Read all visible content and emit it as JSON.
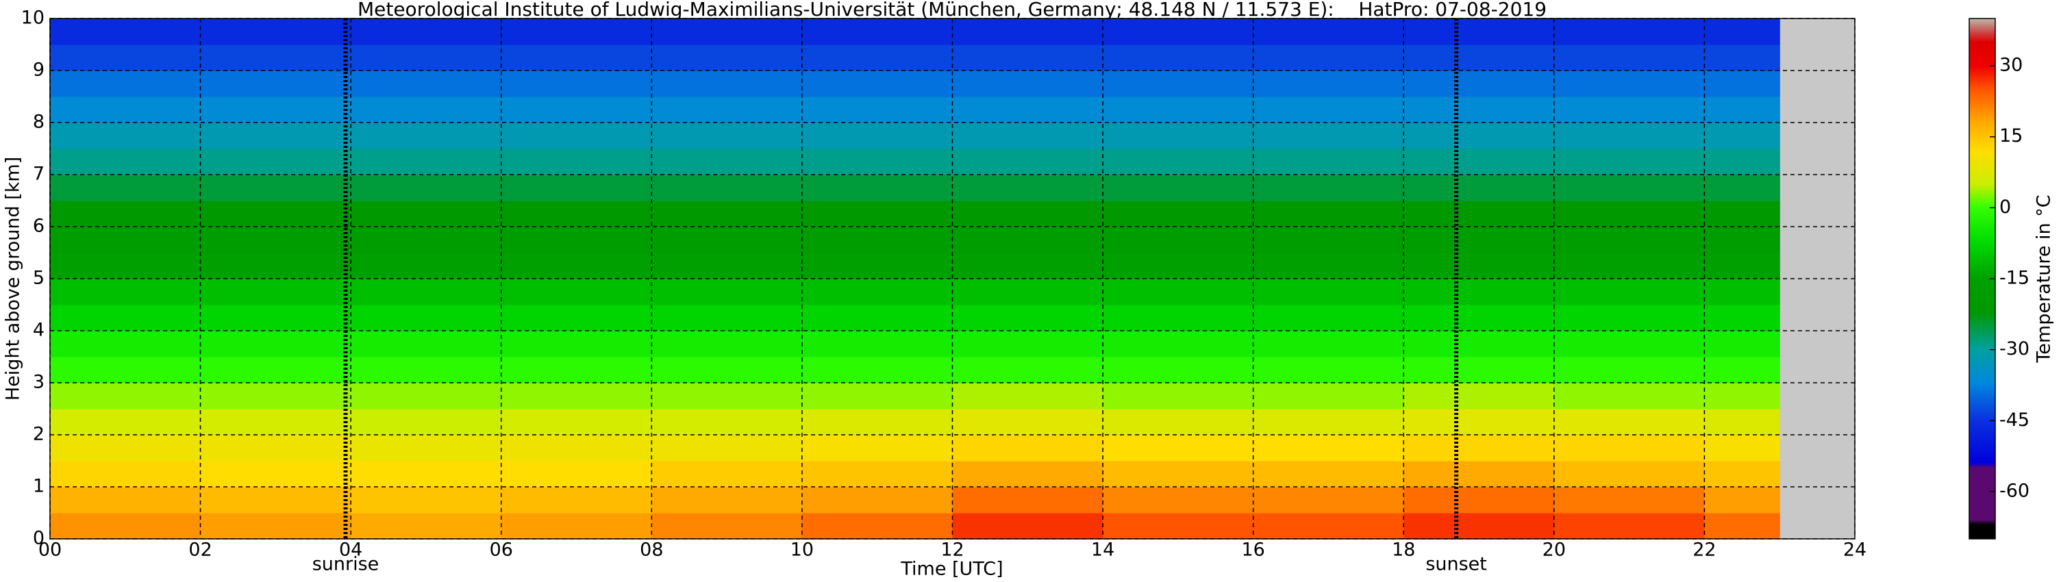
{
  "chart_data": {
    "type": "heatmap",
    "title": "Meteorological Institute of Ludwig-Maximilians-Universität (München, Germany; 48.148 N / 11.573 E):    HatPro: 07-08-2019",
    "xlabel": "Time [UTC]",
    "ylabel": "Height above ground [km]",
    "colorbar_label": "Temperature in °C",
    "x_edges": [
      0,
      2,
      4,
      6,
      8,
      10,
      12,
      14,
      16,
      18,
      20,
      22,
      23
    ],
    "y_edges": [
      0,
      0.5,
      1,
      1.5,
      2,
      2.5,
      3,
      3.5,
      4,
      4.5,
      5,
      5.5,
      6,
      6.5,
      7,
      7.5,
      8,
      8.5,
      9,
      9.5,
      10
    ],
    "z": [
      [
        20,
        19,
        18,
        19,
        21,
        23,
        27,
        25,
        25,
        27,
        26,
        23
      ],
      [
        17,
        16,
        15,
        16,
        18,
        19,
        23,
        21,
        21,
        23,
        22,
        19
      ],
      [
        13,
        12,
        12,
        12,
        14,
        15,
        18,
        16,
        16,
        18,
        16,
        15
      ],
      [
        10,
        10,
        9,
        10,
        10,
        11,
        13,
        12,
        12,
        13,
        13,
        11
      ],
      [
        6,
        6,
        5,
        6,
        6,
        7,
        8,
        7,
        7,
        8,
        8,
        7
      ],
      [
        3,
        3,
        3,
        3,
        3,
        3,
        4,
        3,
        3,
        4,
        3,
        3
      ],
      [
        -1,
        -1,
        -1,
        -1,
        -1,
        -1,
        -1,
        -1,
        -1,
        -1,
        -1,
        -1
      ],
      [
        -4,
        -4,
        -4,
        -4,
        -4,
        -4,
        -4,
        -4,
        -4,
        -4,
        -4,
        -4
      ],
      [
        -8,
        -8,
        -8,
        -8,
        -8,
        -8,
        -8,
        -8,
        -8,
        -8,
        -8,
        -8
      ],
      [
        -11,
        -11,
        -11,
        -11,
        -11,
        -11,
        -11,
        -11,
        -11,
        -11,
        -11,
        -11
      ],
      [
        -15,
        -15,
        -15,
        -15,
        -15,
        -15,
        -15,
        -15,
        -15,
        -15,
        -15,
        -15
      ],
      [
        -18,
        -18,
        -18,
        -18,
        -18,
        -18,
        -18,
        -18,
        -18,
        -18,
        -18,
        -18
      ],
      [
        -22,
        -22,
        -22,
        -22,
        -22,
        -22,
        -22,
        -22,
        -22,
        -22,
        -22,
        -22
      ],
      [
        -25,
        -25,
        -25,
        -25,
        -25,
        -25,
        -25,
        -25,
        -25,
        -25,
        -25,
        -25
      ],
      [
        -29,
        -29,
        -29,
        -29,
        -29,
        -29,
        -29,
        -29,
        -29,
        -29,
        -29,
        -29
      ],
      [
        -32,
        -32,
        -32,
        -32,
        -32,
        -32,
        -32,
        -32,
        -32,
        -32,
        -32,
        -32
      ],
      [
        -36,
        -36,
        -36,
        -36,
        -36,
        -36,
        -36,
        -36,
        -36,
        -36,
        -36,
        -36
      ],
      [
        -39,
        -39,
        -39,
        -39,
        -39,
        -39,
        -39,
        -39,
        -39,
        -39,
        -39,
        -39
      ],
      [
        -43,
        -43,
        -43,
        -43,
        -43,
        -43,
        -43,
        -43,
        -43,
        -43,
        -43,
        -43
      ],
      [
        -46,
        -46,
        -46,
        -46,
        -46,
        -46,
        -46,
        -46,
        -46,
        -46,
        -46,
        -46
      ]
    ],
    "colormap": [
      [
        -70,
        "#000000"
      ],
      [
        -67,
        "#000000"
      ],
      [
        -66,
        "#5a0a6e"
      ],
      [
        -55,
        "#5a0a6e"
      ],
      [
        -54,
        "#0000dd"
      ],
      [
        -45,
        "#0a30e0"
      ],
      [
        -37,
        "#0088dd"
      ],
      [
        -30,
        "#00a0a0"
      ],
      [
        -22,
        "#009900"
      ],
      [
        -15,
        "#00a000"
      ],
      [
        -7,
        "#00dd00"
      ],
      [
        0,
        "#33ff00"
      ],
      [
        5,
        "#ccee00"
      ],
      [
        12,
        "#ffdd00"
      ],
      [
        18,
        "#ffaa00"
      ],
      [
        25,
        "#ff5500"
      ],
      [
        30,
        "#ee0000"
      ],
      [
        35,
        "#dd0000"
      ],
      [
        37,
        "#cc4444"
      ],
      [
        40,
        "#bbbbaa"
      ]
    ],
    "clim": [
      -70,
      40
    ],
    "cticks": [
      -60,
      -45,
      -30,
      -15,
      0,
      15,
      30
    ],
    "xlim": [
      0,
      24
    ],
    "xticks": [
      {
        "value": 0,
        "label": "00"
      },
      {
        "value": 2,
        "label": "02"
      },
      {
        "value": 4,
        "label": "04"
      },
      {
        "value": 6,
        "label": "06"
      },
      {
        "value": 8,
        "label": "08"
      },
      10,
      12,
      14,
      16,
      18,
      20,
      22,
      24
    ],
    "ylim": [
      0,
      10
    ],
    "yticks": [
      0,
      1,
      2,
      3,
      4,
      5,
      6,
      7,
      8,
      9,
      10
    ],
    "grid": true,
    "missing_color": "#c8c8c8",
    "annotations": [
      {
        "x": 3.93,
        "label": "sunrise"
      },
      {
        "x": 18.7,
        "label": "sunset"
      }
    ]
  }
}
